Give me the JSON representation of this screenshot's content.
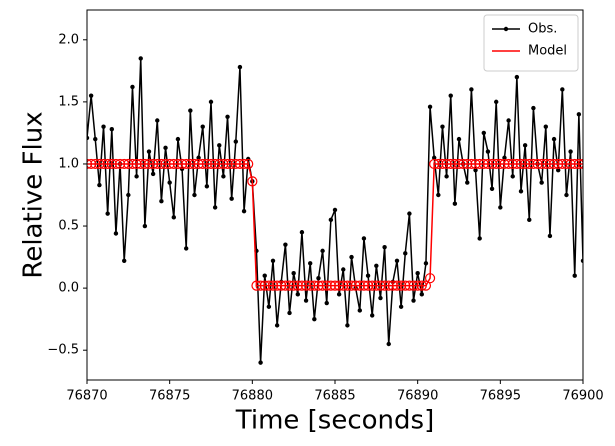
{
  "chart_data": {
    "type": "line",
    "xlabel": "Time [seconds]",
    "ylabel": "Relative Flux",
    "x": [
      76870,
      76870.25,
      76870.5,
      76870.75,
      76871,
      76871.25,
      76871.5,
      76871.75,
      76872,
      76872.25,
      76872.5,
      76872.75,
      76873,
      76873.25,
      76873.5,
      76873.75,
      76874,
      76874.25,
      76874.5,
      76874.75,
      76875,
      76875.25,
      76875.5,
      76875.75,
      76876,
      76876.25,
      76876.5,
      76876.75,
      76877,
      76877.25,
      76877.5,
      76877.75,
      76878,
      76878.25,
      76878.5,
      76878.75,
      76879,
      76879.25,
      76879.5,
      76879.75,
      76880,
      76880.25,
      76880.5,
      76880.75,
      76881,
      76881.25,
      76881.5,
      76881.75,
      76882,
      76882.25,
      76882.5,
      76882.75,
      76883,
      76883.25,
      76883.5,
      76883.75,
      76884,
      76884.25,
      76884.5,
      76884.75,
      76885,
      76885.25,
      76885.5,
      76885.75,
      76886,
      76886.25,
      76886.5,
      76886.75,
      76887,
      76887.25,
      76887.5,
      76887.75,
      76888,
      76888.25,
      76888.5,
      76888.75,
      76889,
      76889.25,
      76889.5,
      76889.75,
      76890,
      76890.25,
      76890.5,
      76890.75,
      76891,
      76891.25,
      76891.5,
      76891.75,
      76892,
      76892.25,
      76892.5,
      76892.75,
      76893,
      76893.25,
      76893.5,
      76893.75,
      76894,
      76894.25,
      76894.5,
      76894.75,
      76895,
      76895.25,
      76895.5,
      76895.75,
      76896,
      76896.25,
      76896.5,
      76896.75,
      76897,
      76897.25,
      76897.5,
      76897.75,
      76898,
      76898.25,
      76898.5,
      76898.75,
      76899,
      76899.25,
      76899.5,
      76899.75,
      76900
    ],
    "series": [
      {
        "name": "Obs.",
        "color": "#000000",
        "marker": "dot",
        "values": [
          1.21,
          1.55,
          1.2,
          0.83,
          1.3,
          0.6,
          1.28,
          0.44,
          1.0,
          0.22,
          0.75,
          1.62,
          0.9,
          1.85,
          0.5,
          1.1,
          0.92,
          1.35,
          0.7,
          1.13,
          0.85,
          0.57,
          1.2,
          0.96,
          0.32,
          1.43,
          0.75,
          1.05,
          1.3,
          0.82,
          1.5,
          0.65,
          1.15,
          0.9,
          1.38,
          0.72,
          1.18,
          1.78,
          0.62,
          1.04,
          0.86,
          0.3,
          -0.6,
          0.1,
          -0.15,
          0.22,
          -0.3,
          0.05,
          0.35,
          -0.2,
          0.12,
          -0.05,
          0.45,
          -0.1,
          0.2,
          -0.25,
          0.08,
          0.3,
          -0.12,
          0.55,
          0.63,
          -0.05,
          0.15,
          -0.3,
          0.25,
          0.0,
          -0.18,
          0.4,
          0.1,
          -0.22,
          0.18,
          -0.08,
          0.33,
          -0.45,
          0.05,
          0.22,
          -0.15,
          0.28,
          0.6,
          -0.1,
          0.12,
          -0.05,
          0.2,
          1.46,
          1.05,
          0.75,
          1.3,
          0.9,
          1.55,
          0.68,
          1.2,
          1.0,
          0.85,
          1.6,
          0.95,
          0.4,
          1.25,
          1.1,
          0.8,
          1.5,
          0.65,
          1.05,
          1.35,
          0.9,
          1.7,
          0.78,
          1.15,
          0.55,
          1.45,
          1.0,
          0.85,
          1.3,
          0.42,
          1.2,
          0.95,
          1.6,
          0.75,
          1.1,
          0.1,
          1.4,
          0.22
        ]
      },
      {
        "name": "Model",
        "color": "#ff0000",
        "marker": "open-circle",
        "values": [
          1,
          1,
          1,
          1,
          1,
          1,
          1,
          1,
          1,
          1,
          1,
          1,
          1,
          1,
          1,
          1,
          1,
          1,
          1,
          1,
          1,
          1,
          1,
          1,
          1,
          1,
          1,
          1,
          1,
          1,
          1,
          1,
          1,
          1,
          1,
          1,
          1,
          1,
          1,
          1,
          0.86,
          0.02,
          0.02,
          0.02,
          0.02,
          0.02,
          0.02,
          0.02,
          0.02,
          0.02,
          0.02,
          0.02,
          0.02,
          0.02,
          0.02,
          0.02,
          0.02,
          0.02,
          0.02,
          0.02,
          0.02,
          0.02,
          0.02,
          0.02,
          0.02,
          0.02,
          0.02,
          0.02,
          0.02,
          0.02,
          0.02,
          0.02,
          0.02,
          0.02,
          0.02,
          0.02,
          0.02,
          0.02,
          0.02,
          0.02,
          0.02,
          0.02,
          0.02,
          0.08,
          1,
          1,
          1,
          1,
          1,
          1,
          1,
          1,
          1,
          1,
          1,
          1,
          1,
          1,
          1,
          1,
          1,
          1,
          1,
          1,
          1,
          1,
          1,
          1,
          1,
          1,
          1,
          1,
          1,
          1,
          1,
          1,
          1,
          1,
          1,
          1,
          1
        ]
      }
    ],
    "xlim": [
      76870,
      76900
    ],
    "xticks": [
      76870,
      76875,
      76880,
      76885,
      76890,
      76895,
      76900
    ],
    "ylim": [
      -0.74,
      2.24
    ],
    "yticks": [
      {
        "value": -0.5,
        "label": "−0.5"
      },
      {
        "value": 0,
        "label": "0.0"
      },
      0.5,
      {
        "value": 1,
        "label": "1.0"
      },
      1.5,
      {
        "value": 2,
        "label": "2.0"
      }
    ],
    "legend": "upper right"
  }
}
